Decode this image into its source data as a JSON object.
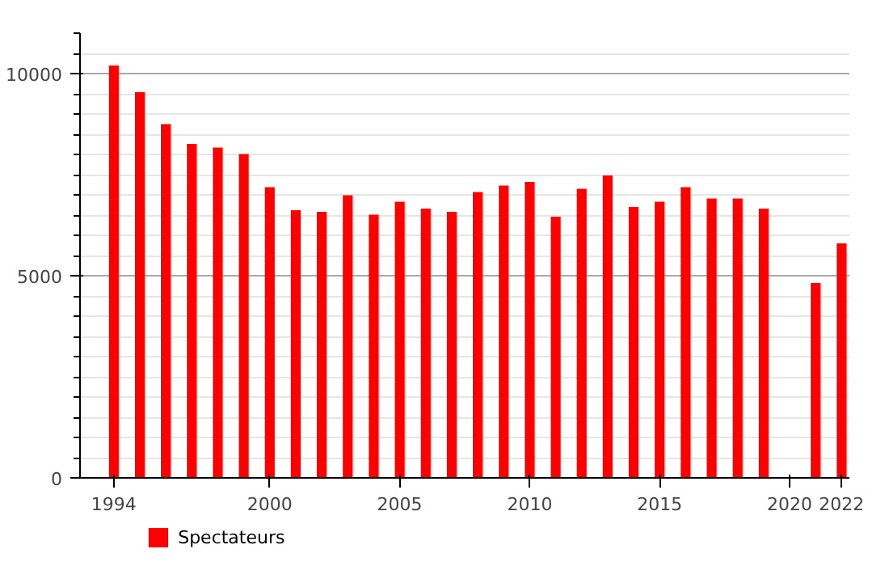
{
  "chart_data": {
    "type": "bar",
    "x": [
      1994,
      1995,
      1996,
      1997,
      1998,
      1999,
      2000,
      2001,
      2002,
      2003,
      2004,
      2005,
      2006,
      2007,
      2008,
      2009,
      2010,
      2011,
      2012,
      2013,
      2014,
      2015,
      2016,
      2017,
      2018,
      2019,
      2020,
      2021,
      2022
    ],
    "series": [
      {
        "name": "Spectateurs",
        "color": "#ff0000",
        "values": [
          10200,
          9540,
          8750,
          8260,
          8170,
          8010,
          7190,
          6620,
          6580,
          6990,
          6510,
          6830,
          6660,
          6580,
          7070,
          7230,
          7320,
          6460,
          7150,
          7480,
          6700,
          6830,
          7190,
          6910,
          6910,
          6660,
          null,
          4820,
          5800
        ]
      }
    ],
    "xlim": [
      1992.7,
      2022.3
    ],
    "xticks": [
      1994,
      2000,
      2005,
      2010,
      2015,
      2020,
      2022
    ],
    "ylim": [
      0,
      11000
    ],
    "yticks": [
      0,
      5000,
      10000
    ],
    "grid": "y",
    "legend": "bottom left"
  }
}
